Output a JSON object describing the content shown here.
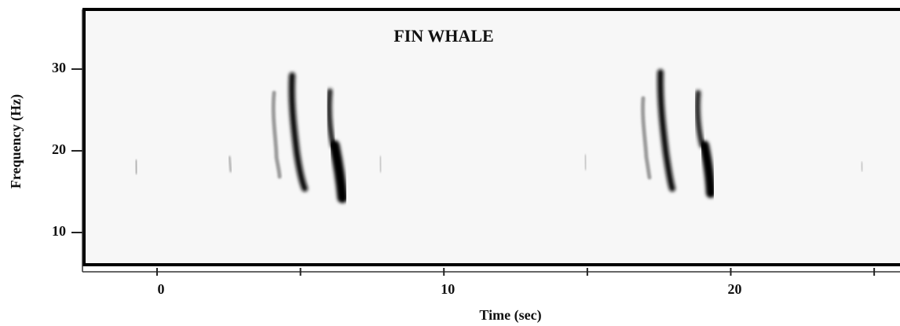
{
  "chart_data": {
    "type": "spectrogram",
    "title": "FIN WHALE",
    "xlabel": "Time (sec)",
    "ylabel": "Frequency (Hz)",
    "xlim": [
      -2.6,
      25.9
    ],
    "ylim": [
      6.06,
      37.3
    ],
    "xticks": [
      0,
      10,
      20
    ],
    "xminor_ticks": [
      5,
      15,
      25
    ],
    "yticks": [
      10,
      20,
      30
    ]
  }
}
